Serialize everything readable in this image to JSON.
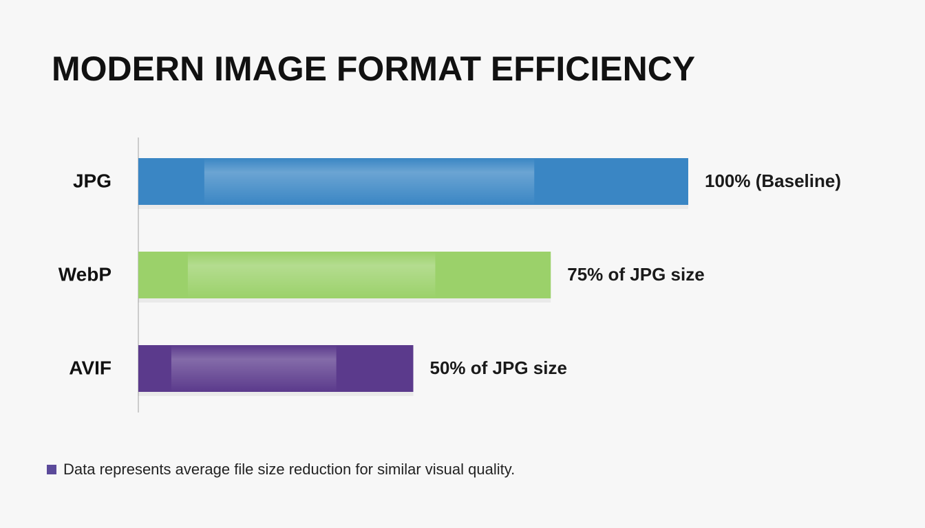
{
  "chart_data": {
    "type": "hbar",
    "title": "MODERN IMAGE FORMAT EFFICIENCY",
    "categories": [
      "JPG",
      "WebP",
      "AVIF"
    ],
    "values": [
      100,
      75,
      50
    ],
    "value_labels": [
      "100% (Baseline)",
      "75% of JPG size",
      "50% of JPG size"
    ],
    "colors": [
      "#3a86c4",
      "#9bd16a",
      "#5b3a8c"
    ],
    "note": "Data represents average file size reduction for similar visual quality.",
    "note_color": "#5b4a9a"
  }
}
